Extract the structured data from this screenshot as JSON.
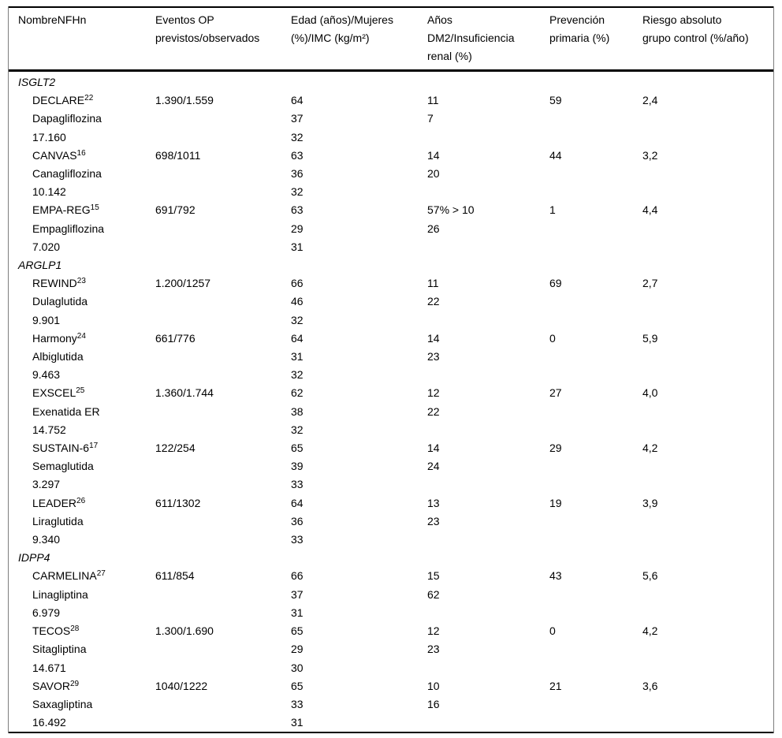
{
  "table": {
    "header": {
      "col1": "NombreNFHn",
      "col2": "Eventos OP\nprevistos/observados",
      "col3": "Edad (años)/Mujeres\n(%)/IMC (kg/m²)",
      "col4": "Años\nDM2/Insuficiencia\nrenal (%)",
      "col5": "Prevención\nprimaria (%)",
      "col6": "Riesgo absoluto\ngrupo control (%/año)"
    },
    "sections": [
      {
        "name": "ISGLT2",
        "trials": [
          {
            "name": "DECLARE",
            "ref": "22",
            "drug": "Dapagliflozina",
            "n": "17.160",
            "events": "1.390/1.559",
            "age": "64",
            "women": "37",
            "bmi": "32",
            "dm2_years": "11",
            "renal": "7",
            "prevention": "59",
            "risk": "2,4"
          },
          {
            "name": "CANVAS",
            "ref": "16",
            "drug": "Canagliflozina",
            "n": "10.142",
            "events": "698/1011",
            "age": "63",
            "women": "36",
            "bmi": "32",
            "dm2_years": "14",
            "renal": "20",
            "prevention": "44",
            "risk": "3,2"
          },
          {
            "name": "EMPA-REG",
            "ref": "15",
            "drug": "Empagliflozina",
            "n": "7.020",
            "events": "691/792",
            "age": "63",
            "women": "29",
            "bmi": "31",
            "dm2_years": "57% > 10",
            "renal": "26",
            "prevention": "1",
            "risk": "4,4"
          }
        ]
      },
      {
        "name": "ARGLP1",
        "trials": [
          {
            "name": "REWIND",
            "ref": "23",
            "drug": "Dulaglutida",
            "n": "9.901",
            "events": "1.200/1257",
            "age": "66",
            "women": "46",
            "bmi": "32",
            "dm2_years": "11",
            "renal": "22",
            "prevention": "69",
            "risk": "2,7"
          },
          {
            "name": "Harmony",
            "ref": "24",
            "drug": "Albiglutida",
            "n": "9.463",
            "events": "661/776",
            "age": "64",
            "women": "31",
            "bmi": "32",
            "dm2_years": "14",
            "renal": "23",
            "prevention": "0",
            "risk": "5,9"
          },
          {
            "name": "EXSCEL",
            "ref": "25",
            "drug": "Exenatida ER",
            "n": "14.752",
            "events": "1.360/1.744",
            "age": "62",
            "women": "38",
            "bmi": "32",
            "dm2_years": "12",
            "renal": "22",
            "prevention": "27",
            "risk": "4,0"
          },
          {
            "name": "SUSTAIN-6",
            "ref": "17",
            "drug": "Semaglutida",
            "n": "3.297",
            "events": "122/254",
            "age": "65",
            "women": "39",
            "bmi": "33",
            "dm2_years": "14",
            "renal": "24",
            "prevention": "29",
            "risk": "4,2"
          },
          {
            "name": "LEADER",
            "ref": "26",
            "drug": "Liraglutida",
            "n": "9.340",
            "events": "611/1302",
            "age": "64",
            "women": "36",
            "bmi": "33",
            "dm2_years": "13",
            "renal": "23",
            "prevention": "19",
            "risk": "3,9"
          }
        ]
      },
      {
        "name": "IDPP4",
        "trials": [
          {
            "name": "CARMELINA",
            "ref": "27",
            "drug": "Linagliptina",
            "n": "6.979",
            "events": "611/854",
            "age": "66",
            "women": "37",
            "bmi": "31",
            "dm2_years": "15",
            "renal": "62",
            "prevention": "43",
            "risk": "5,6"
          },
          {
            "name": "TECOS",
            "ref": "28",
            "drug": "Sitagliptina",
            "n": "14.671",
            "events": "1.300/1.690",
            "age": "65",
            "women": "29",
            "bmi": "30",
            "dm2_years": "12",
            "renal": "23",
            "prevention": "0",
            "risk": "4,2"
          },
          {
            "name": "SAVOR",
            "ref": "29",
            "drug": "Saxagliptina",
            "n": "16.492",
            "events": "1040/1222",
            "age": "65",
            "women": "33",
            "bmi": "31",
            "dm2_years": "10",
            "renal": "16",
            "prevention": "21",
            "risk": "3,6"
          }
        ]
      }
    ]
  }
}
